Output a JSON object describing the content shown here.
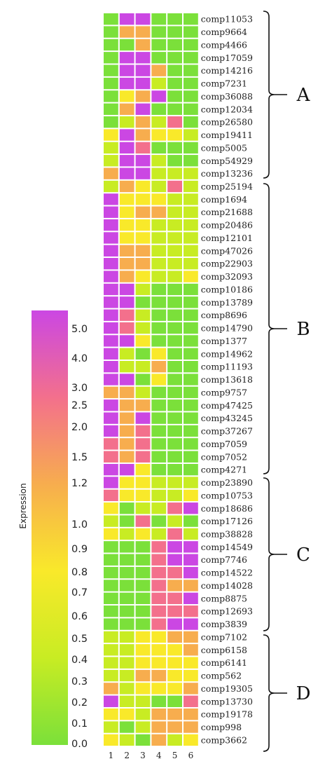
{
  "chart_data": {
    "type": "heatmap",
    "legend_title": "Expression",
    "legend_ticks": [
      "5.0",
      "4.0",
      "3.0",
      "2.5",
      "2.0",
      "1.5",
      "1.2",
      "1.0",
      "0.9",
      "0.8",
      "0.7",
      "0.6",
      "0.5",
      "0.4",
      "0.3",
      "0.2",
      "0.1",
      "0.0"
    ],
    "legend_tick_values": [
      5.0,
      4.0,
      3.0,
      2.5,
      2.0,
      1.5,
      1.2,
      1.0,
      0.9,
      0.8,
      0.7,
      0.6,
      0.5,
      0.4,
      0.3,
      0.2,
      0.1,
      0.0
    ],
    "color_stops": [
      "#7be03a",
      "#c8ec23",
      "#f9e92a",
      "#f7ad4e",
      "#f3708c",
      "#cb47e3"
    ],
    "columns": [
      "1",
      "2",
      "3",
      "4",
      "5",
      "6"
    ],
    "rows": [
      "comp11053",
      "comp9664",
      "comp4466",
      "comp17059",
      "comp14216",
      "comp7231",
      "comp36088",
      "comp12034",
      "comp26580",
      "comp19411",
      "comp5005",
      "comp54929",
      "comp13236",
      "comp25194",
      "comp1694",
      "comp21688",
      "comp20486",
      "comp12101",
      "comp47026",
      "comp22903",
      "comp32093",
      "comp10186",
      "comp13789",
      "comp8696",
      "comp14790",
      "comp1377",
      "comp14962",
      "comp11193",
      "comp13618",
      "comp9757",
      "comp47425",
      "comp43245",
      "comp37267",
      "comp7059",
      "comp7052",
      "comp4271",
      "comp23890",
      "comp10753",
      "comp18686",
      "comp17126",
      "comp38828",
      "comp14549",
      "comp7746",
      "comp14522",
      "comp14028",
      "comp8875",
      "comp12693",
      "comp3839",
      "comp7102",
      "comp6158",
      "comp6141",
      "comp562",
      "comp19305",
      "comp13730",
      "comp19178",
      "comp998",
      "comp3662"
    ],
    "values": [
      [
        0,
        5,
        5,
        0,
        0,
        0
      ],
      [
        0,
        3,
        3,
        0,
        0,
        0
      ],
      [
        0,
        0,
        3,
        0,
        0,
        0
      ],
      [
        0,
        5,
        5,
        0,
        0,
        0
      ],
      [
        0,
        5,
        5,
        3,
        0,
        0
      ],
      [
        0,
        5,
        5,
        1,
        0,
        0
      ],
      [
        0,
        2,
        3,
        5,
        0,
        0
      ],
      [
        0,
        3,
        5,
        0,
        0,
        0
      ],
      [
        0,
        1,
        3,
        1,
        4,
        0
      ],
      [
        2,
        5,
        3,
        2,
        2,
        1
      ],
      [
        1,
        5,
        4,
        0,
        0,
        0
      ],
      [
        1,
        5,
        5,
        1,
        0,
        0
      ],
      [
        3,
        5,
        5,
        1,
        1,
        1
      ],
      [
        1,
        3,
        2,
        1,
        4,
        1
      ],
      [
        5,
        2,
        2,
        2,
        1,
        1
      ],
      [
        5,
        2,
        3,
        3,
        1,
        1
      ],
      [
        5,
        2,
        2,
        1,
        1,
        1
      ],
      [
        5,
        2,
        2,
        1,
        1,
        1
      ],
      [
        5,
        3,
        3,
        1,
        1,
        1
      ],
      [
        5,
        3,
        3,
        1,
        1,
        1
      ],
      [
        5,
        3,
        2,
        1,
        1,
        2
      ],
      [
        5,
        5,
        1,
        0,
        0,
        0
      ],
      [
        5,
        5,
        0,
        0,
        0,
        0
      ],
      [
        5,
        4,
        1,
        0,
        0,
        0
      ],
      [
        5,
        4,
        1,
        0,
        0,
        0
      ],
      [
        5,
        5,
        2,
        0,
        0,
        0
      ],
      [
        5,
        1,
        0,
        2,
        0,
        0
      ],
      [
        5,
        1,
        1,
        3,
        0,
        0
      ],
      [
        5,
        5,
        0,
        2,
        0,
        0
      ],
      [
        3,
        3,
        1,
        0,
        0,
        0
      ],
      [
        5,
        3,
        3,
        0,
        0,
        0
      ],
      [
        5,
        3,
        5,
        0,
        0,
        0
      ],
      [
        5,
        3,
        4,
        0,
        0,
        0
      ],
      [
        4,
        3,
        4,
        0,
        0,
        0
      ],
      [
        4,
        3,
        4,
        0,
        0,
        0
      ],
      [
        5,
        5,
        2,
        0,
        0,
        0
      ],
      [
        5,
        2,
        2,
        1,
        1,
        1
      ],
      [
        4,
        2,
        2,
        1,
        1,
        2
      ],
      [
        2,
        0,
        1,
        1,
        4,
        5
      ],
      [
        1,
        0,
        4,
        0,
        1,
        0
      ],
      [
        2,
        1,
        2,
        1,
        4,
        1
      ],
      [
        0,
        0,
        0,
        4,
        5,
        5
      ],
      [
        0,
        0,
        0,
        4,
        5,
        5
      ],
      [
        0,
        0,
        0,
        4,
        4,
        5
      ],
      [
        0,
        0,
        0,
        4,
        3,
        3
      ],
      [
        0,
        0,
        0,
        4,
        4,
        5
      ],
      [
        0,
        0,
        0,
        4,
        4,
        4
      ],
      [
        0,
        0,
        0,
        4,
        5,
        5
      ],
      [
        1,
        1,
        2,
        2,
        3,
        3
      ],
      [
        1,
        1,
        2,
        2,
        2,
        3
      ],
      [
        1,
        1,
        2,
        2,
        2,
        2
      ],
      [
        1,
        1,
        3,
        3,
        2,
        2
      ],
      [
        3,
        1,
        2,
        2,
        2,
        3
      ],
      [
        5,
        1,
        1,
        0,
        0,
        4
      ],
      [
        2,
        2,
        1,
        3,
        3,
        3
      ],
      [
        1,
        0,
        1,
        3,
        3,
        3
      ],
      [
        2,
        1,
        0,
        3,
        1,
        2
      ]
    ],
    "clusters": [
      {
        "label": "A"
      },
      {
        "label": "B"
      },
      {
        "label": "C"
      },
      {
        "label": "D"
      }
    ]
  }
}
